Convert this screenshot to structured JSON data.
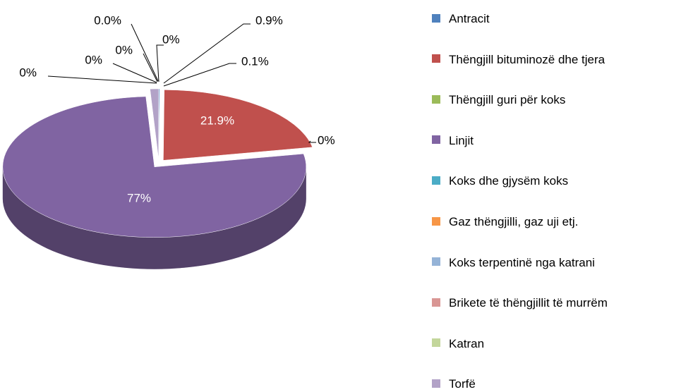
{
  "chart_data": {
    "type": "pie",
    "categories": [
      "Antracit",
      "Thëngjill bituminozë dhe tjera",
      "Thëngjill guri për koks",
      "Linjit",
      "Koks dhe gjysëm koks",
      "Gaz thëngjilli, gaz uji etj.",
      "Koks terpentinë nga katrani",
      "Brikete të thëngjillit të murrëm",
      "Katran",
      "Torfë"
    ],
    "values": [
      0.1,
      21.9,
      0,
      77,
      0,
      0,
      0,
      0,
      0,
      0.9
    ],
    "value_labels": [
      "0.1%",
      "21.9%",
      "0%",
      "77%",
      "0%",
      "0%",
      "0%",
      "0%",
      "0.0%",
      "0.9%"
    ],
    "colors": [
      "#4F81BD",
      "#C0504D",
      "#9BBB59",
      "#8064A2",
      "#4BACC6",
      "#F79646",
      "#95B3D7",
      "#D99694",
      "#C3D69B",
      "#B2A2C7"
    ],
    "legend": "right"
  }
}
